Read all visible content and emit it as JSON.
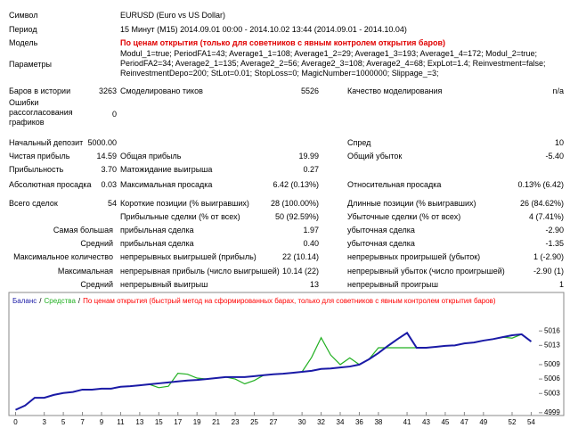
{
  "report": {
    "rows": [
      {
        "l1": "Символ",
        "v": "EURUSD (Euro vs US Dollar)"
      },
      {
        "l1": "Период",
        "v": "15 Минут (M15) 2014.09.01 00:00 - 2014.10.02 13:44 (2014.09.01 - 2014.10.04)"
      },
      {
        "l1": "Модель",
        "v": "По ценам открытия (только для советников с явным контролем открытия баров)"
      },
      {
        "l1": "Параметры",
        "v": "Modul_1=true; PeriodFA1=43; Average1_1=108; Average1_2=29; Average1_3=193; Average1_4=172; Modul_2=true; PeriodFA2=34; Average2_1=135; Average2_2=56; Average2_3=108; Average2_4=68; ExpLot=1.4; Reinvestment=false; ReinvestmentDepo=200; StLot=0.01; StopLoss=0; MagicNumber=1000000; Slippage_=3;"
      },
      {
        "l1": "Баров в истории",
        "v1": "3263",
        "l2": "Смоделировано тиков",
        "v2": "5526",
        "l3": "Качество моделирования",
        "v3": "n/a"
      },
      {
        "l1": "Ошибки рассогласования графиков",
        "v1": "0"
      },
      {
        "l1": "Начальный депозит",
        "v1": "5000.00",
        "l3": "Спред",
        "v3": "10"
      },
      {
        "l1": "Чистая прибыль",
        "v1": "14.59",
        "l2": "Общая прибыль",
        "v2": "19.99",
        "l3": "Общий убыток",
        "v3": "-5.40"
      },
      {
        "l1": "Прибыльность",
        "v1": "3.70",
        "l2": "Матожидание выигрыша",
        "v2": "0.27"
      },
      {
        "l1": "Абсолютная просадка",
        "v1": "0.03",
        "l2": "Максимальная просадка",
        "v2": "6.42 (0.13%)",
        "l3": "Относительная просадка",
        "v3": "0.13% (6.42)"
      },
      {
        "l1": "Всего сделок",
        "v1": "54",
        "l2": "Короткие позиции (% выигравших)",
        "v2": "28 (100.00%)",
        "l3": "Длинные позиции (% выигравших)",
        "v3": "26 (84.62%)"
      },
      {
        "l2": "Прибыльные сделки (% от всех)",
        "v2": "50 (92.59%)",
        "l3": "Убыточные сделки (% от всех)",
        "v3": "4 (7.41%)"
      },
      {
        "l1": "Самая большая",
        "l2": "прибыльная сделка",
        "v2": "1.97",
        "l3": "убыточная сделка",
        "v3": "-2.90"
      },
      {
        "l1": "Средний",
        "l2": "прибыльная сделка",
        "v2": "0.40",
        "l3": "убыточная сделка",
        "v3": "-1.35"
      },
      {
        "l1": "Максимальное количество",
        "l2": "непрерывных выигрышей (прибыль)",
        "v2": "22 (10.14)",
        "l3": "непрерывных проигрышей (убыток)",
        "v3": "1 (-2.90)"
      },
      {
        "l1": "Максимальная",
        "l2": "непрерывная прибыль (число выигрышей)",
        "v2": "10.14 (22)",
        "l3": "непрерывный убыток (число проигрышей)",
        "v3": "-2.90 (1)"
      },
      {
        "l1": "Средний",
        "l2": "непрерывный выигрыш",
        "v2": "13",
        "l3": "непрерывный проигрыш",
        "v3": "1"
      }
    ]
  },
  "chart_data": {
    "type": "line",
    "separator": "/",
    "subtitle": "По ценам открытия (быстрый метод на сформированных барах, только для советников с явным контролем открытия баров)",
    "subtitle_color": "#ff0000",
    "x": [
      0,
      1,
      2,
      3,
      4,
      5,
      6,
      7,
      8,
      9,
      10,
      11,
      12,
      13,
      14,
      15,
      16,
      17,
      18,
      19,
      20,
      21,
      22,
      23,
      24,
      25,
      26,
      27,
      28,
      29,
      30,
      31,
      32,
      33,
      34,
      35,
      36,
      37,
      38,
      39,
      40,
      41,
      42,
      43,
      44,
      45,
      46,
      47,
      48,
      49,
      50,
      51,
      52,
      53,
      54
    ],
    "series": [
      {
        "name": "Баланс",
        "color": "#1a1aa6",
        "values": [
          4999.6,
          5000.5,
          5002.1,
          5002.1,
          5002.7,
          5003.1,
          5003.3,
          5003.8,
          5003.8,
          5004.0,
          5004.0,
          5004.4,
          5004.5,
          5004.7,
          5004.9,
          5005.1,
          5005.3,
          5005.5,
          5005.7,
          5005.8,
          5006.0,
          5006.2,
          5006.4,
          5006.4,
          5006.4,
          5006.6,
          5006.8,
          5007.0,
          5007.1,
          5007.3,
          5007.5,
          5007.7,
          5008.1,
          5008.2,
          5008.4,
          5008.6,
          5009.0,
          5010.1,
          5011.4,
          5012.9,
          5014.3,
          5015.6,
          5012.5,
          5012.5,
          5012.7,
          5012.9,
          5013.0,
          5013.4,
          5013.6,
          5014.0,
          5014.3,
          5014.7,
          5015.1,
          5015.3,
          5013.8
        ]
      },
      {
        "name": "Средства",
        "color": "#22b022",
        "values": [
          4999.6,
          5000.5,
          5002.1,
          5002.1,
          5002.7,
          5003.1,
          5003.3,
          5003.8,
          5003.8,
          5004.0,
          5004.0,
          5004.4,
          5004.5,
          5004.7,
          5004.9,
          5004.2,
          5004.5,
          5007.2,
          5007.0,
          5006.2,
          5006.0,
          5006.2,
          5006.4,
          5006.0,
          5005.0,
          5005.7,
          5006.8,
          5007.0,
          5007.1,
          5007.3,
          5007.5,
          5010.5,
          5014.6,
          5011.0,
          5009.0,
          5010.4,
          5009.0,
          5010.1,
          5012.5,
          5012.5,
          5012.5,
          5012.5,
          5012.5,
          5012.5,
          5012.7,
          5012.9,
          5013.0,
          5013.4,
          5013.6,
          5014.0,
          5014.3,
          5014.7,
          5014.5,
          5015.3,
          5013.8
        ]
      }
    ],
    "xlim": [
      -0.7,
      54.8
    ],
    "xticks": [
      0,
      3,
      5,
      7,
      9,
      11,
      13,
      15,
      17,
      19,
      21,
      23,
      25,
      27,
      30,
      32,
      34,
      36,
      38,
      41,
      43,
      45,
      47,
      49,
      52,
      54
    ],
    "ylim": [
      4998.6,
      5024
    ],
    "yticks": [
      4999,
      5003,
      5006,
      5009,
      5013,
      5016
    ],
    "grid": false
  }
}
